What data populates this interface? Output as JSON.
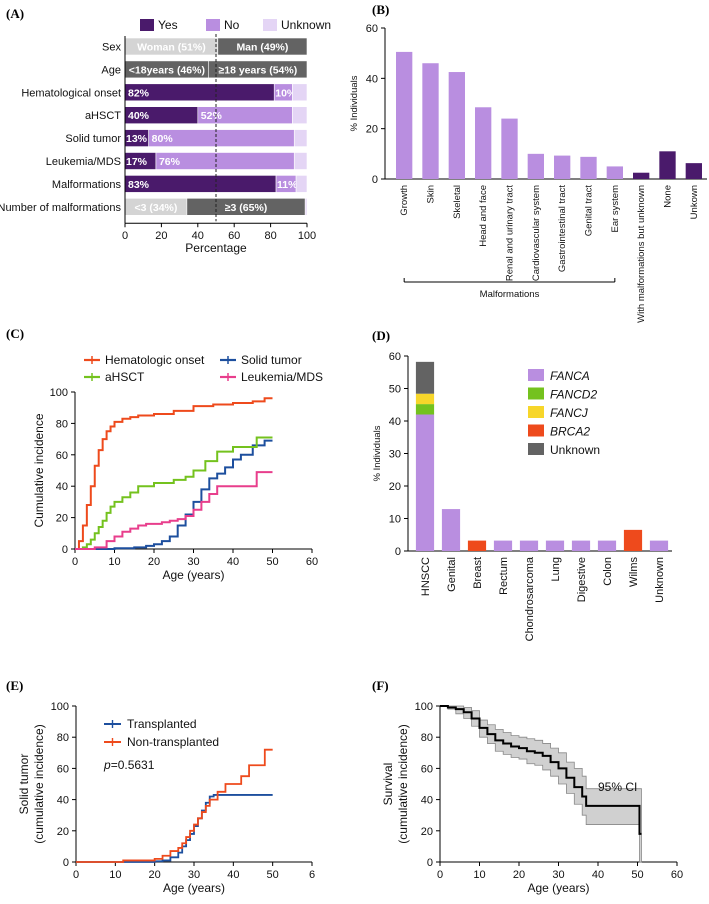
{
  "panel_labels": [
    "(A)",
    "(B)",
    "(C)",
    "(D)",
    "(E)",
    "(F)"
  ],
  "colors": {
    "yes": "#4a1a6b",
    "no": "#b98ee0",
    "unknown": "#e4d5f5",
    "light_gray": "#d4d4d4",
    "dark_gray": "#636363",
    "orange": "#ee4a1c",
    "green": "#74c21e",
    "blue": "#1d4f9e",
    "pink": "#e83e8c",
    "yellow": "#f7d62a"
  },
  "chart_data": [
    {
      "id": "A",
      "type": "bar",
      "orientation": "horizontal-stacked",
      "legend": [
        "Yes",
        "No",
        "Unknown"
      ],
      "xlabel": "Percentage",
      "xlim": [
        0,
        100
      ],
      "xticks": [
        "0",
        "20",
        "40",
        "60",
        "80",
        "100"
      ],
      "rows": [
        {
          "label": "Sex",
          "segments": [
            {
              "value": 51,
              "text": "Woman (51%)",
              "color": "light_gray",
              "text_dark": true
            },
            {
              "value": 49,
              "text": "Man (49%)",
              "color": "dark_gray"
            }
          ],
          "right": ""
        },
        {
          "label": "Age",
          "segments": [
            {
              "value": 46,
              "text": "<18years (46%)",
              "color": "dark_gray"
            },
            {
              "value": 54,
              "text": "≥18 years (54%)",
              "color": "dark_gray"
            }
          ],
          "right": ""
        },
        {
          "label": "Hematological onset",
          "segments": [
            {
              "value": 82,
              "text": "82%",
              "color": "yes"
            },
            {
              "value": 10,
              "text": "10%",
              "color": "no"
            },
            {
              "value": 8,
              "text": "",
              "color": "unknown"
            }
          ],
          "right": "8%"
        },
        {
          "label": "aHSCT",
          "segments": [
            {
              "value": 40,
              "text": "40%",
              "color": "yes"
            },
            {
              "value": 52,
              "text": "52%",
              "color": "no"
            },
            {
              "value": 8,
              "text": "",
              "color": "unknown"
            }
          ],
          "right": "8%"
        },
        {
          "label": "Solid tumor",
          "segments": [
            {
              "value": 13,
              "text": "13%",
              "color": "yes"
            },
            {
              "value": 80,
              "text": "80%",
              "color": "no"
            },
            {
              "value": 7,
              "text": "",
              "color": "unknown"
            }
          ],
          "right": "7%"
        },
        {
          "label": "Leukemia/MDS",
          "segments": [
            {
              "value": 17,
              "text": "17%",
              "color": "yes"
            },
            {
              "value": 76,
              "text": "76%",
              "color": "no"
            },
            {
              "value": 7,
              "text": "",
              "color": "unknown"
            }
          ],
          "right": "7%"
        },
        {
          "label": "Malformations",
          "segments": [
            {
              "value": 83,
              "text": "83%",
              "color": "yes"
            },
            {
              "value": 11,
              "text": "11%",
              "color": "no"
            },
            {
              "value": 6,
              "text": "",
              "color": "unknown"
            }
          ],
          "right": "6%"
        },
        {
          "label": "Number of malformations",
          "segments": [
            {
              "value": 34,
              "text": "<3 (34%)",
              "color": "light_gray",
              "text_dark": true
            },
            {
              "value": 65,
              "text": "≥3 (65%)",
              "color": "dark_gray"
            },
            {
              "value": 1,
              "text": "",
              "color": "unknown"
            }
          ],
          "right": "1%"
        }
      ]
    },
    {
      "id": "B",
      "type": "bar",
      "ylabel": "% Individuals",
      "ylim": [
        0,
        60
      ],
      "yticks": [
        "0",
        "20",
        "40",
        "60"
      ],
      "categories": [
        "Growth",
        "Skin",
        "Skeletal",
        "Head and face",
        "Renal and urinary tract",
        "Cardiovascular system",
        "Gastrointestinal tract",
        "Genital tract",
        "Ear system",
        "With malformations but unknown",
        "None",
        "Unkown"
      ],
      "values": [
        50.5,
        46,
        42.5,
        28.5,
        24,
        10,
        9.3,
        8.8,
        5,
        2.5,
        11,
        6.3
      ],
      "bar_colors": [
        "no",
        "no",
        "no",
        "no",
        "no",
        "no",
        "no",
        "no",
        "no",
        "yes",
        "yes",
        "yes"
      ],
      "bracket_label": "Malformations"
    },
    {
      "id": "C",
      "type": "line",
      "xlabel": "Age (years)",
      "ylabel": "Cumulative incidence",
      "xlim": [
        0,
        60
      ],
      "ylim": [
        0,
        100
      ],
      "xticks": [
        "0",
        "10",
        "20",
        "30",
        "40",
        "50",
        "60"
      ],
      "yticks": [
        "0",
        "20",
        "40",
        "60",
        "80",
        "100"
      ],
      "series": [
        {
          "name": "Hematologic onset",
          "color": "orange",
          "x": [
            0,
            1,
            2,
            3,
            4,
            5,
            6,
            7,
            8,
            9,
            10,
            12,
            14,
            16,
            20,
            25,
            30,
            35,
            40,
            45,
            48,
            50
          ],
          "y": [
            0,
            5,
            15,
            28,
            40,
            53,
            63,
            70,
            75,
            78,
            81,
            83,
            84,
            85,
            86,
            88,
            91,
            92,
            93,
            94,
            96,
            96
          ]
        },
        {
          "name": "Solid tumor",
          "color": "blue",
          "x": [
            0,
            10,
            15,
            18,
            20,
            22,
            24,
            26,
            28,
            30,
            32,
            34,
            36,
            38,
            40,
            42,
            45,
            48,
            50
          ],
          "y": [
            0,
            0.5,
            1,
            2,
            3,
            5,
            8,
            15,
            22,
            30,
            38,
            45,
            48,
            52,
            57,
            60,
            66,
            69,
            69
          ]
        },
        {
          "name": "aHSCT",
          "color": "green",
          "x": [
            0,
            2,
            3,
            4,
            5,
            6,
            7,
            8,
            9,
            10,
            12,
            14,
            16,
            20,
            25,
            28,
            30,
            33,
            36,
            40,
            44,
            46,
            50
          ],
          "y": [
            0,
            1,
            3,
            6,
            10,
            14,
            18,
            23,
            27,
            30,
            33,
            36,
            40,
            42,
            44,
            46,
            50,
            56,
            62,
            65,
            65,
            71,
            71
          ]
        },
        {
          "name": "Leukemia/MDS",
          "color": "pink",
          "x": [
            0,
            5,
            8,
            10,
            12,
            14,
            16,
            18,
            20,
            22,
            24,
            26,
            28,
            30,
            32,
            34,
            36,
            40,
            44,
            46,
            50
          ],
          "y": [
            0,
            1,
            5,
            8,
            11,
            13,
            15,
            16,
            16,
            17,
            18,
            19,
            21,
            25,
            30,
            35,
            40,
            40,
            40,
            49,
            49
          ]
        }
      ]
    },
    {
      "id": "D",
      "type": "bar",
      "orientation": "stacked",
      "ylabel": "% Individuals",
      "ylim": [
        0,
        60
      ],
      "yticks": [
        "0",
        "10",
        "20",
        "30",
        "40",
        "50",
        "60"
      ],
      "categories": [
        "HNSCC",
        "Genital",
        "Breast",
        "Rectum",
        "Chondrosarcoma",
        "Lung",
        "Digestive",
        "Colon",
        "Wilms",
        "Unknown"
      ],
      "series": [
        {
          "name": "FANCA",
          "color": "no",
          "values": [
            42,
            12.9,
            0,
            3.2,
            3.2,
            3.2,
            3.2,
            3.2,
            0,
            3.2
          ]
        },
        {
          "name": "FANCD2",
          "color": "green",
          "values": [
            3.2,
            0,
            0,
            0,
            0,
            0,
            0,
            0,
            0,
            0
          ]
        },
        {
          "name": "FANCJ",
          "color": "yellow",
          "values": [
            3.2,
            0,
            0,
            0,
            0,
            0,
            0,
            0,
            0,
            0
          ]
        },
        {
          "name": "BRCA2",
          "color": "orange",
          "values": [
            0,
            0,
            3.2,
            0,
            0,
            0,
            0,
            0,
            6.5,
            0
          ]
        },
        {
          "name": "Unknown",
          "color": "dark_gray",
          "values": [
            9.8,
            0,
            0,
            0,
            0,
            0,
            0,
            0,
            0,
            0
          ]
        }
      ]
    },
    {
      "id": "E",
      "type": "line",
      "xlabel": "Age (years)",
      "ylabel": "Solid tumor",
      "ylabel2": "(cumulative incidence)",
      "xlim": [
        0,
        60
      ],
      "ylim": [
        0,
        100
      ],
      "xticks": [
        "0",
        "10",
        "20",
        "30",
        "40",
        "50",
        "6"
      ],
      "yticks": [
        "0",
        "20",
        "40",
        "60",
        "80",
        "100"
      ],
      "annotation": "=0.5631",
      "annotation_p": "p",
      "series": [
        {
          "name": "Transplanted",
          "color": "blue",
          "x": [
            0,
            20,
            22,
            24,
            26,
            27,
            28,
            29,
            30,
            31,
            32,
            33,
            34,
            35,
            50
          ],
          "y": [
            0,
            0.5,
            1,
            3,
            6,
            10,
            14,
            18,
            23,
            28,
            33,
            38,
            42,
            43,
            43
          ]
        },
        {
          "name": "Non-transplanted",
          "color": "orange",
          "x": [
            0,
            12,
            20,
            22,
            24,
            26,
            27,
            28,
            29,
            30,
            31,
            32,
            33,
            34,
            35,
            36,
            38,
            40,
            42,
            44,
            46,
            48,
            50
          ],
          "y": [
            0,
            1,
            2,
            4,
            7,
            9,
            12,
            16,
            20,
            24,
            28,
            32,
            36,
            40,
            40,
            45,
            50,
            50,
            55,
            62,
            62,
            72,
            72
          ]
        }
      ]
    },
    {
      "id": "F",
      "type": "line",
      "xlabel": "Age (years)",
      "ylabel": "Survival",
      "ylabel2": "(cumulative incidence)",
      "xlim": [
        0,
        60
      ],
      "ylim": [
        0,
        100
      ],
      "xticks": [
        "0",
        "10",
        "20",
        "30",
        "40",
        "50",
        "60"
      ],
      "yticks": [
        "0",
        "20",
        "40",
        "60",
        "80",
        "100"
      ],
      "annotation": "95% CI",
      "series": [
        {
          "name": "Survival",
          "color": "#000000",
          "x": [
            0,
            2,
            4,
            6,
            8,
            10,
            12,
            14,
            16,
            18,
            20,
            22,
            24,
            26,
            28,
            30,
            32,
            34,
            36,
            37,
            40,
            45,
            50,
            50.5,
            51
          ],
          "y": [
            100,
            99,
            98,
            96,
            92,
            86,
            82,
            78,
            76,
            74,
            73,
            71,
            70,
            68,
            64,
            60,
            54,
            48,
            42,
            36,
            36,
            36,
            36,
            18,
            18
          ],
          "upper": [
            100,
            100,
            100,
            99,
            97,
            91,
            88,
            85,
            83,
            81,
            80,
            79,
            78,
            76,
            73,
            70,
            64,
            60,
            55,
            47,
            47,
            47,
            47,
            47,
            47
          ],
          "lower": [
            100,
            98,
            95,
            92,
            87,
            80,
            76,
            71,
            69,
            67,
            66,
            63,
            62,
            59,
            55,
            50,
            44,
            37,
            30,
            24,
            24,
            24,
            24,
            0,
            0
          ]
        }
      ]
    }
  ]
}
